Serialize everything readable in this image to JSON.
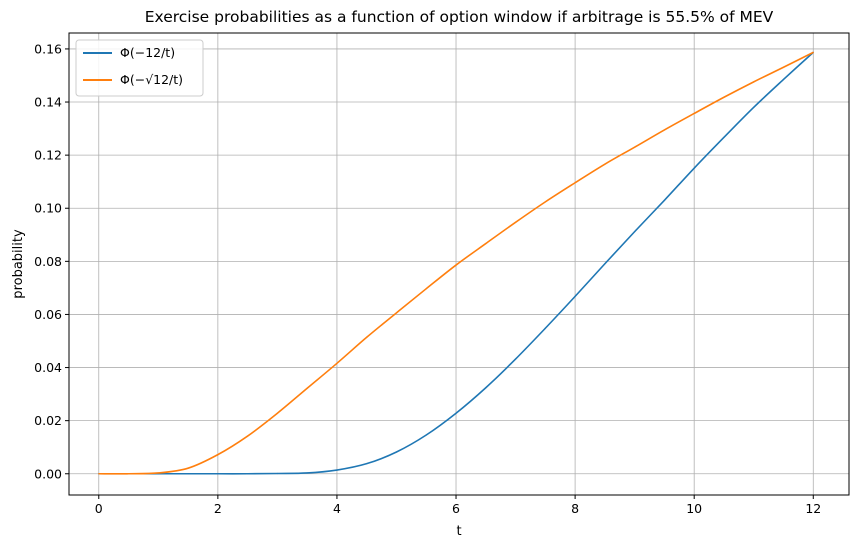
{
  "chart_data": {
    "type": "line",
    "title": "Exercise probabilities as a function of option window if arbitrage is 55.5% of MEV",
    "xlabel": "t",
    "ylabel": "probability",
    "xlim": [
      -0.5,
      12.6
    ],
    "ylim": [
      -0.008,
      0.166
    ],
    "x_ticks": [
      0,
      2,
      4,
      6,
      8,
      10,
      12
    ],
    "x_tick_labels": [
      "0",
      "2",
      "4",
      "6",
      "8",
      "10",
      "12"
    ],
    "y_ticks": [
      0.0,
      0.02,
      0.04,
      0.06,
      0.08,
      0.1,
      0.12,
      0.14,
      0.16
    ],
    "y_tick_labels": [
      "0.00",
      "0.02",
      "0.04",
      "0.06",
      "0.08",
      "0.10",
      "0.12",
      "0.14",
      "0.16"
    ],
    "grid": true,
    "legend_position": "top-left",
    "series": [
      {
        "name": "Φ(−12/t)",
        "color": "#1f77b4",
        "x": [
          0,
          0.5,
          1,
          1.5,
          2,
          2.5,
          3,
          3.5,
          4,
          4.5,
          5,
          5.5,
          6,
          6.5,
          7,
          7.5,
          8,
          8.5,
          9,
          9.5,
          10,
          10.5,
          11,
          11.5,
          12
        ],
        "y": [
          0,
          0,
          0,
          0,
          0,
          0,
          0.0001,
          0.0003,
          0.0014,
          0.0038,
          0.0082,
          0.0146,
          0.0228,
          0.0324,
          0.0432,
          0.0548,
          0.0668,
          0.0791,
          0.0912,
          0.103,
          0.1151,
          0.1267,
          0.138,
          0.1485,
          0.1587
        ]
      },
      {
        "name": "Φ(−√12/t)",
        "color": "#ff7f0e",
        "x": [
          0,
          0.5,
          1,
          1.5,
          2,
          2.5,
          3,
          3.5,
          4,
          4.5,
          5,
          5.5,
          6,
          6.5,
          7,
          7.5,
          8,
          8.5,
          9,
          9.5,
          10,
          10.5,
          11,
          11.5,
          12
        ],
        "y": [
          0,
          0,
          0.0003,
          0.0021,
          0.0072,
          0.0142,
          0.0228,
          0.0322,
          0.0416,
          0.0514,
          0.0606,
          0.0697,
          0.0786,
          0.0867,
          0.0947,
          0.1024,
          0.1096,
          0.1166,
          0.123,
          0.1295,
          0.1357,
          0.1418,
          0.1476,
          0.1531,
          0.1587
        ]
      }
    ]
  }
}
